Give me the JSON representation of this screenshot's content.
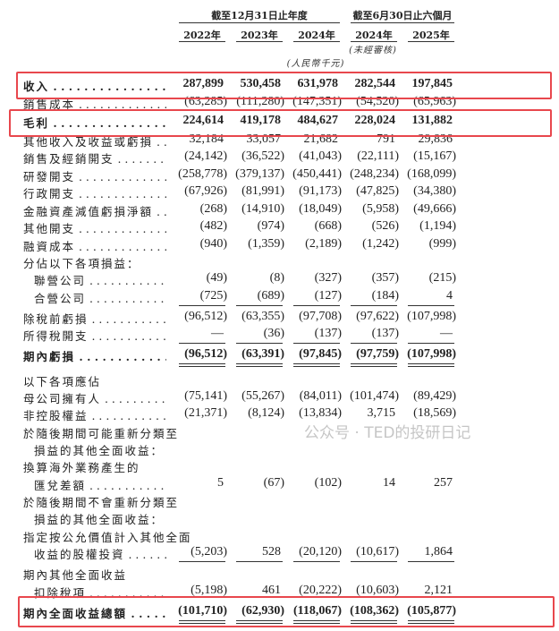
{
  "header": {
    "group1": "截至12月31日止年度",
    "group2": "截至6月30日止六個月",
    "years": [
      "2022年",
      "2023年",
      "2024年",
      "2024年",
      "2025年"
    ],
    "unaudited": "(未經審核)",
    "currency": "(人民幣千元)"
  },
  "rows": [
    {
      "label": "收入",
      "values": [
        "287,899",
        "530,458",
        "631,978",
        "282,544",
        "197,845"
      ],
      "bold": true,
      "highlight": true
    },
    {
      "label": "銷售成本",
      "values": [
        "(63,285)",
        "(111,280)",
        "(147,351)",
        "(54,520)",
        "(65,963)"
      ]
    },
    {
      "label": "毛利",
      "values": [
        "224,614",
        "419,178",
        "484,627",
        "228,024",
        "131,882"
      ],
      "bold": true,
      "highlight": true
    },
    {
      "label": "其他收入及收益或虧損",
      "values": [
        "32,184",
        "33,057",
        "21,682",
        "791",
        "29,836"
      ]
    },
    {
      "label": "銷售及經銷開支",
      "values": [
        "(24,142)",
        "(36,522)",
        "(41,043)",
        "(22,111)",
        "(15,167)"
      ]
    },
    {
      "label": "研發開支",
      "values": [
        "(258,778)",
        "(379,137)",
        "(450,441)",
        "(248,234)",
        "(168,099)"
      ]
    },
    {
      "label": "行政開支",
      "values": [
        "(67,926)",
        "(81,991)",
        "(91,173)",
        "(47,825)",
        "(34,380)"
      ]
    },
    {
      "label": "金融資產減值虧損淨額",
      "values": [
        "(268)",
        "(14,910)",
        "(18,049)",
        "(5,958)",
        "(49,666)"
      ]
    },
    {
      "label": "其他開支",
      "values": [
        "(482)",
        "(974)",
        "(668)",
        "(526)",
        "(1,194)"
      ]
    },
    {
      "label": "融資成本",
      "values": [
        "(940)",
        "(1,359)",
        "(2,189)",
        "(1,242)",
        "(999)"
      ]
    },
    {
      "label": "分佔以下各項損益：",
      "values": []
    },
    {
      "label": "聯營公司",
      "values": [
        "(49)",
        "(8)",
        "(327)",
        "(357)",
        "(215)"
      ],
      "indent": true
    },
    {
      "label": "合營公司",
      "values": [
        "(725)",
        "(689)",
        "(127)",
        "(184)",
        "4"
      ],
      "indent": true
    },
    {
      "label": "除稅前虧損",
      "values": [
        "(96,512)",
        "(63,355)",
        "(97,708)",
        "(97,622)",
        "(107,998)"
      ]
    },
    {
      "label": "所得稅開支",
      "values": [
        "—",
        "(36)",
        "(137)",
        "(137)",
        "—"
      ]
    },
    {
      "label": "期內虧損",
      "values": [
        "(96,512)",
        "(63,391)",
        "(97,845)",
        "(97,759)",
        "(107,998)"
      ],
      "bold": true
    },
    {
      "label": "以下各項應佔",
      "values": []
    },
    {
      "label": "母公司擁有人",
      "values": [
        "(75,141)",
        "(55,267)",
        "(84,011)",
        "(101,474)",
        "(89,429)"
      ]
    },
    {
      "label": "非控股權益",
      "values": [
        "(21,371)",
        "(8,124)",
        "(13,834)",
        "3,715",
        "(18,569)"
      ]
    },
    {
      "label": "於隨後期間可能重新分類至",
      "values": []
    },
    {
      "label": "損益的其他全面收益：",
      "values": [],
      "indent": true
    },
    {
      "label": "換算海外業務產生的",
      "values": []
    },
    {
      "label": "匯兌差額",
      "values": [
        "5",
        "(67)",
        "(102)",
        "14",
        "257"
      ],
      "indent": true
    },
    {
      "label": "於隨後期間不會重新分類至",
      "values": []
    },
    {
      "label": "損益的其他全面收益：",
      "values": [],
      "indent": true
    },
    {
      "label": "指定按公允價值計入其他全面",
      "values": []
    },
    {
      "label": "收益的股權投資",
      "values": [
        "(5,203)",
        "528",
        "(20,120)",
        "(10,617)",
        "1,864"
      ],
      "indent": true
    },
    {
      "label": "期內其他全面收益",
      "values": []
    },
    {
      "label": "扣除稅項",
      "values": [
        "(5,198)",
        "461",
        "(20,222)",
        "(10,603)",
        "2,121"
      ],
      "indent": true
    },
    {
      "label": "期內全面收益總額",
      "values": [
        "(101,710)",
        "(62,930)",
        "(118,067)",
        "(108,362)",
        "(105,877)"
      ],
      "bold": true,
      "highlight": true
    }
  ],
  "watermark": "公众号 · TED的投研日记",
  "colors": {
    "highlight_box": "#e8474d"
  }
}
